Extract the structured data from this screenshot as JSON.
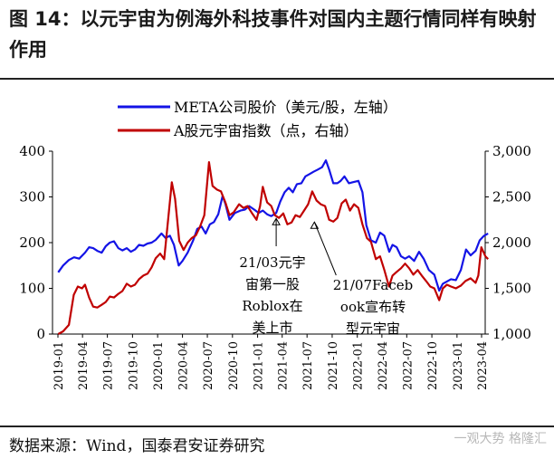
{
  "header": {
    "title": "图 14：以元宇宙为例海外科技事件对国内主题行情同样有映射作用"
  },
  "footer": {
    "source": "数据来源：Wind，国泰君安证券研究",
    "watermark": "一观大势 格隆汇"
  },
  "chart_data": {
    "type": "line",
    "legend_position": "top",
    "grid": false,
    "x_ticks": [
      "2019-01",
      "2019-04",
      "2019-07",
      "2019-10",
      "2020-01",
      "2020-04",
      "2020-07",
      "2020-10",
      "2021-01",
      "2021-04",
      "2021-07",
      "2021-10",
      "2022-01",
      "2022-04",
      "2022-07",
      "2022-10",
      "2023-01",
      "2023-04"
    ],
    "y_left": {
      "range": [
        0,
        400
      ],
      "ticks": [
        "0",
        "100",
        "200",
        "300",
        "400"
      ]
    },
    "y_right": {
      "range": [
        1000,
        3000
      ],
      "ticks": [
        "1,000",
        "1,500",
        "2,000",
        "2,500",
        "3,000"
      ]
    },
    "series": [
      {
        "name": "META公司股价（美元/股，左轴）",
        "axis": "left",
        "color": "#1414e6",
        "points": [
          [
            "2019-01-02",
            135
          ],
          [
            "2019-01-20",
            150
          ],
          [
            "2019-02-10",
            162
          ],
          [
            "2019-03-01",
            168
          ],
          [
            "2019-03-20",
            165
          ],
          [
            "2019-04-10",
            178
          ],
          [
            "2019-04-25",
            190
          ],
          [
            "2019-05-10",
            188
          ],
          [
            "2019-05-25",
            182
          ],
          [
            "2019-06-10",
            178
          ],
          [
            "2019-06-25",
            192
          ],
          [
            "2019-07-10",
            200
          ],
          [
            "2019-07-25",
            203
          ],
          [
            "2019-08-10",
            188
          ],
          [
            "2019-08-25",
            183
          ],
          [
            "2019-09-10",
            188
          ],
          [
            "2019-09-25",
            180
          ],
          [
            "2019-10-10",
            185
          ],
          [
            "2019-10-25",
            195
          ],
          [
            "2019-11-10",
            193
          ],
          [
            "2019-11-25",
            198
          ],
          [
            "2019-12-10",
            200
          ],
          [
            "2019-12-25",
            206
          ],
          [
            "2020-01-15",
            220
          ],
          [
            "2020-01-30",
            210
          ],
          [
            "2020-02-15",
            215
          ],
          [
            "2020-03-01",
            195
          ],
          [
            "2020-03-18",
            150
          ],
          [
            "2020-04-01",
            160
          ],
          [
            "2020-04-20",
            178
          ],
          [
            "2020-05-10",
            205
          ],
          [
            "2020-05-25",
            230
          ],
          [
            "2020-06-10",
            235
          ],
          [
            "2020-06-25",
            220
          ],
          [
            "2020-07-10",
            240
          ],
          [
            "2020-07-25",
            245
          ],
          [
            "2020-08-10",
            262
          ],
          [
            "2020-08-26",
            302
          ],
          [
            "2020-09-05",
            285
          ],
          [
            "2020-09-20",
            250
          ],
          [
            "2020-10-10",
            265
          ],
          [
            "2020-10-30",
            270
          ],
          [
            "2020-11-15",
            272
          ],
          [
            "2020-12-01",
            280
          ],
          [
            "2020-12-20",
            272
          ],
          [
            "2021-01-05",
            265
          ],
          [
            "2021-01-20",
            270
          ],
          [
            "2021-02-05",
            262
          ],
          [
            "2021-02-20",
            258
          ],
          [
            "2021-03-10",
            265
          ],
          [
            "2021-03-25",
            290
          ],
          [
            "2021-04-10",
            310
          ],
          [
            "2021-04-25",
            320
          ],
          [
            "2021-05-10",
            310
          ],
          [
            "2021-05-25",
            328
          ],
          [
            "2021-06-10",
            330
          ],
          [
            "2021-06-25",
            345
          ],
          [
            "2021-07-10",
            350
          ],
          [
            "2021-07-25",
            355
          ],
          [
            "2021-08-10",
            360
          ],
          [
            "2021-08-25",
            365
          ],
          [
            "2021-09-08",
            380
          ],
          [
            "2021-09-20",
            360
          ],
          [
            "2021-10-05",
            330
          ],
          [
            "2021-10-20",
            330
          ],
          [
            "2021-11-01",
            335
          ],
          [
            "2021-11-15",
            345
          ],
          [
            "2021-12-01",
            330
          ],
          [
            "2021-12-15",
            332
          ],
          [
            "2022-01-05",
            335
          ],
          [
            "2022-01-20",
            310
          ],
          [
            "2022-02-03",
            238
          ],
          [
            "2022-02-20",
            205
          ],
          [
            "2022-03-10",
            200
          ],
          [
            "2022-03-25",
            222
          ],
          [
            "2022-04-10",
            215
          ],
          [
            "2022-04-28",
            180
          ],
          [
            "2022-05-10",
            195
          ],
          [
            "2022-05-25",
            190
          ],
          [
            "2022-06-10",
            170
          ],
          [
            "2022-06-25",
            165
          ],
          [
            "2022-07-10",
            170
          ],
          [
            "2022-07-28",
            160
          ],
          [
            "2022-08-15",
            180
          ],
          [
            "2022-09-01",
            165
          ],
          [
            "2022-09-20",
            140
          ],
          [
            "2022-10-10",
            130
          ],
          [
            "2022-10-28",
            95
          ],
          [
            "2022-11-10",
            110
          ],
          [
            "2022-11-25",
            115
          ],
          [
            "2022-12-10",
            120
          ],
          [
            "2022-12-28",
            118
          ],
          [
            "2023-01-15",
            140
          ],
          [
            "2023-02-03",
            185
          ],
          [
            "2023-02-20",
            172
          ],
          [
            "2023-03-10",
            182
          ],
          [
            "2023-03-25",
            205
          ],
          [
            "2023-04-10",
            215
          ],
          [
            "2023-04-25",
            220
          ]
        ]
      },
      {
        "name": "A股元宇宙指数（点，右轴）",
        "axis": "right",
        "color": "#c00000",
        "points": [
          [
            "2019-01-02",
            1000
          ],
          [
            "2019-01-20",
            1030
          ],
          [
            "2019-02-10",
            1100
          ],
          [
            "2019-02-28",
            1430
          ],
          [
            "2019-03-15",
            1520
          ],
          [
            "2019-03-30",
            1500
          ],
          [
            "2019-04-10",
            1540
          ],
          [
            "2019-04-25",
            1400
          ],
          [
            "2019-05-10",
            1300
          ],
          [
            "2019-05-25",
            1290
          ],
          [
            "2019-06-10",
            1320
          ],
          [
            "2019-06-25",
            1350
          ],
          [
            "2019-07-10",
            1410
          ],
          [
            "2019-07-25",
            1400
          ],
          [
            "2019-08-10",
            1440
          ],
          [
            "2019-08-25",
            1470
          ],
          [
            "2019-09-10",
            1550
          ],
          [
            "2019-09-25",
            1520
          ],
          [
            "2019-10-10",
            1540
          ],
          [
            "2019-10-25",
            1600
          ],
          [
            "2019-11-10",
            1640
          ],
          [
            "2019-11-25",
            1660
          ],
          [
            "2019-12-10",
            1730
          ],
          [
            "2019-12-25",
            1830
          ],
          [
            "2020-01-10",
            1880
          ],
          [
            "2020-01-25",
            1820
          ],
          [
            "2020-02-10",
            2300
          ],
          [
            "2020-02-22",
            2660
          ],
          [
            "2020-03-05",
            2480
          ],
          [
            "2020-03-20",
            2020
          ],
          [
            "2020-04-05",
            1920
          ],
          [
            "2020-04-20",
            2000
          ],
          [
            "2020-05-05",
            2050
          ],
          [
            "2020-05-20",
            2080
          ],
          [
            "2020-06-05",
            2180
          ],
          [
            "2020-06-20",
            2300
          ],
          [
            "2020-07-07",
            2880
          ],
          [
            "2020-07-20",
            2620
          ],
          [
            "2020-08-05",
            2580
          ],
          [
            "2020-08-20",
            2560
          ],
          [
            "2020-09-05",
            2440
          ],
          [
            "2020-09-20",
            2300
          ],
          [
            "2020-10-05",
            2330
          ],
          [
            "2020-10-25",
            2420
          ],
          [
            "2020-11-10",
            2380
          ],
          [
            "2020-11-25",
            2400
          ],
          [
            "2020-12-10",
            2330
          ],
          [
            "2020-12-28",
            2250
          ],
          [
            "2021-01-10",
            2400
          ],
          [
            "2021-01-20",
            2610
          ],
          [
            "2021-02-05",
            2440
          ],
          [
            "2021-02-20",
            2400
          ],
          [
            "2021-03-05",
            2300
          ],
          [
            "2021-03-20",
            2270
          ],
          [
            "2021-04-05",
            2320
          ],
          [
            "2021-04-20",
            2200
          ],
          [
            "2021-05-05",
            2220
          ],
          [
            "2021-05-20",
            2300
          ],
          [
            "2021-06-05",
            2280
          ],
          [
            "2021-06-20",
            2350
          ],
          [
            "2021-07-05",
            2420
          ],
          [
            "2021-07-20",
            2560
          ],
          [
            "2021-08-05",
            2460
          ],
          [
            "2021-08-20",
            2420
          ],
          [
            "2021-09-05",
            2400
          ],
          [
            "2021-09-20",
            2250
          ],
          [
            "2021-10-05",
            2230
          ],
          [
            "2021-10-20",
            2270
          ],
          [
            "2021-11-05",
            2430
          ],
          [
            "2021-11-20",
            2470
          ],
          [
            "2021-12-05",
            2350
          ],
          [
            "2021-12-20",
            2420
          ],
          [
            "2022-01-05",
            2380
          ],
          [
            "2022-01-20",
            2200
          ],
          [
            "2022-02-05",
            2050
          ],
          [
            "2022-02-20",
            2010
          ],
          [
            "2022-03-10",
            1820
          ],
          [
            "2022-03-25",
            1850
          ],
          [
            "2022-04-10",
            1700
          ],
          [
            "2022-04-27",
            1520
          ],
          [
            "2022-05-10",
            1640
          ],
          [
            "2022-05-25",
            1680
          ],
          [
            "2022-06-10",
            1720
          ],
          [
            "2022-06-25",
            1770
          ],
          [
            "2022-07-10",
            1720
          ],
          [
            "2022-07-25",
            1650
          ],
          [
            "2022-08-10",
            1700
          ],
          [
            "2022-08-25",
            1640
          ],
          [
            "2022-09-10",
            1580
          ],
          [
            "2022-09-25",
            1520
          ],
          [
            "2022-10-10",
            1500
          ],
          [
            "2022-10-28",
            1370
          ],
          [
            "2022-11-10",
            1500
          ],
          [
            "2022-11-25",
            1540
          ],
          [
            "2022-12-10",
            1520
          ],
          [
            "2022-12-28",
            1500
          ],
          [
            "2023-01-15",
            1530
          ],
          [
            "2023-02-01",
            1580
          ],
          [
            "2023-02-20",
            1610
          ],
          [
            "2023-03-10",
            1560
          ],
          [
            "2023-03-20",
            1640
          ],
          [
            "2023-03-31",
            1950
          ],
          [
            "2023-04-15",
            1850
          ],
          [
            "2023-04-25",
            1820
          ]
        ]
      }
    ],
    "annotations": [
      {
        "lines": [
          "21/03元宇",
          "宙第一股",
          "Roblox在",
          "美上市"
        ],
        "date": "2021-03-10",
        "value": 253
      },
      {
        "lines": [
          "21/07Faceb",
          "ook宣布转",
          "型元宇宙"
        ],
        "date": "2021-07-28",
        "value": 245
      }
    ]
  }
}
